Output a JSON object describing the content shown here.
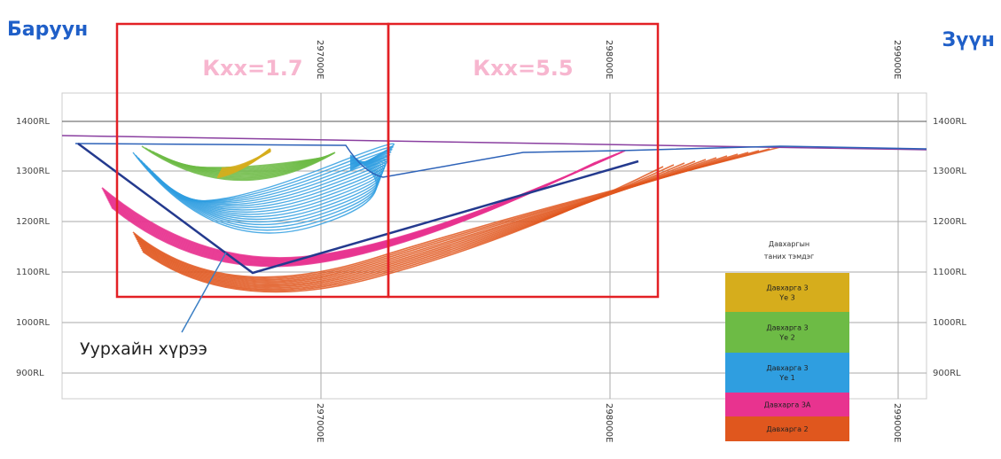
{
  "header": {
    "west": "Баруун",
    "east": "Зүүн"
  },
  "zones": [
    {
      "label": "Кхх=1.7"
    },
    {
      "label": "Кхх=5.5"
    }
  ],
  "elevation_labels": [
    "1400RL",
    "1300RL",
    "1200RL",
    "1100RL",
    "1000RL",
    "900RL"
  ],
  "easting_labels": [
    "297000E",
    "298000E",
    "299000E"
  ],
  "annotation": "Уурхайн хүрээ",
  "legend": {
    "title_lines": [
      "Давхаргын",
      "таних тэмдэг"
    ],
    "items": [
      {
        "lines": [
          "Давхарга 3",
          "Үе 3"
        ],
        "color": "#d6ad1c"
      },
      {
        "lines": [
          "Давхарга 3",
          "Үе 2"
        ],
        "color": "#6dbb45"
      },
      {
        "lines": [
          "Давхарга 3",
          "Үе 1"
        ],
        "color": "#2f9ee0"
      },
      {
        "lines": [
          "Давхарга 3А"
        ],
        "color": "#e8338f"
      },
      {
        "lines": [
          "Давхарга 2"
        ],
        "color": "#e0571e"
      }
    ]
  }
}
